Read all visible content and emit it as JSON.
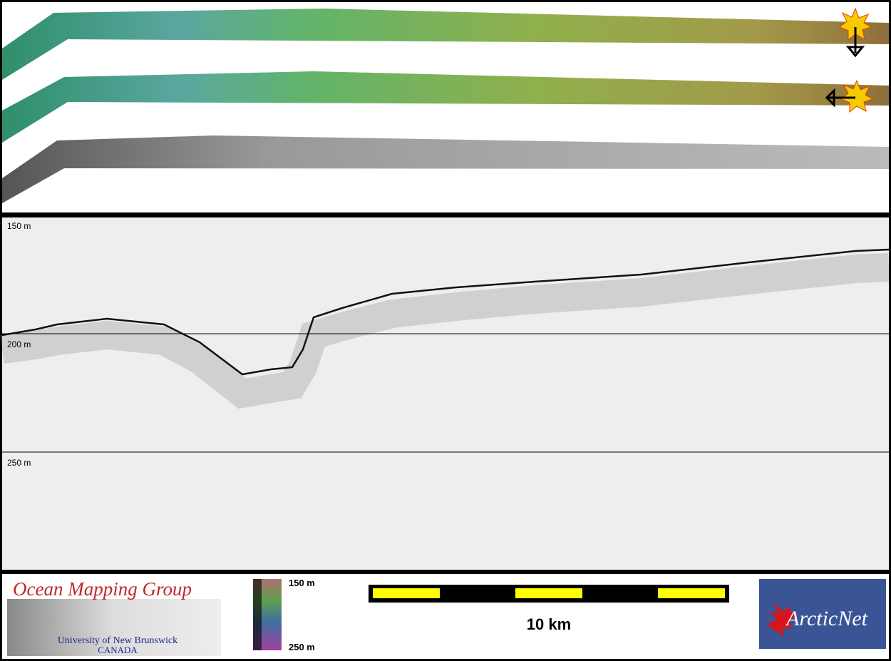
{
  "profile": {
    "depth_labels": [
      "150 m",
      "200 m",
      "250 m"
    ]
  },
  "colorbar": {
    "top_label": "150 m",
    "bottom_label": "250 m"
  },
  "scale_bar": {
    "label": "10 km"
  },
  "logos": {
    "omg_title": "Ocean Mapping Group",
    "omg_university": "University of New Brunswick",
    "omg_country": "CANADA",
    "arcticnet": "ArcticNet"
  }
}
